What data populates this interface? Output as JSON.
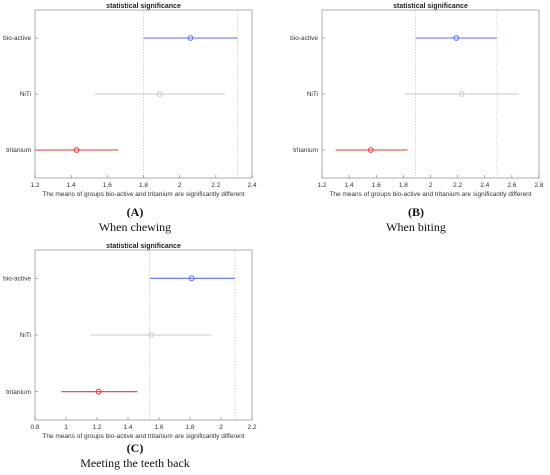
{
  "chart_data": [
    {
      "id": "A",
      "type": "scatter",
      "title": "statistical significance",
      "xlabel": "The means of groups bio-active and tritanium are significantly different",
      "categories": [
        "bio-active",
        "NiTi",
        "tritanium"
      ],
      "xlim": [
        1.2,
        2.4
      ],
      "xticks": [
        "1.2",
        "1.4",
        "1.6",
        "1.8",
        "2",
        "2.2",
        "2.4"
      ],
      "series": [
        {
          "category": "bio-active",
          "mean": 2.06,
          "low": 1.8,
          "high": 2.32,
          "color": "#5b6ff0"
        },
        {
          "category": "NiTi",
          "mean": 1.89,
          "low": 1.53,
          "high": 2.25,
          "color": "#c8c8c8"
        },
        {
          "category": "tritanium",
          "mean": 1.43,
          "low": 1.2,
          "high": 1.66,
          "color": "#e03a3a"
        }
      ],
      "ref_lines": [
        1.8,
        2.32
      ],
      "label": "(A)",
      "caption": "When chewing"
    },
    {
      "id": "B",
      "type": "scatter",
      "title": "statistical significance",
      "xlabel": "The means of groups bio-active and tritanium are significantly different",
      "categories": [
        "bio-active",
        "NiTi",
        "tritanium"
      ],
      "xlim": [
        1.2,
        2.8
      ],
      "xticks": [
        "1.2",
        "1.4",
        "1.6",
        "1.8",
        "2",
        "2.2",
        "2.4",
        "2.6",
        "2.8"
      ],
      "series": [
        {
          "category": "bio-active",
          "mean": 2.19,
          "low": 1.89,
          "high": 2.49,
          "color": "#5b6ff0"
        },
        {
          "category": "NiTi",
          "mean": 2.23,
          "low": 1.81,
          "high": 2.65,
          "color": "#c8c8c8"
        },
        {
          "category": "tritanium",
          "mean": 1.56,
          "low": 1.3,
          "high": 1.83,
          "color": "#e03a3a"
        }
      ],
      "ref_lines": [
        1.89,
        2.49
      ],
      "label": "(B)",
      "caption": "When biting"
    },
    {
      "id": "C",
      "type": "scatter",
      "title": "statistical significance",
      "xlabel": "The means of groups bio-active and tritanium are significantly different",
      "categories": [
        "bio-active",
        "NiTi",
        "tritanium"
      ],
      "xlim": [
        0.8,
        2.2
      ],
      "xticks": [
        "0.8",
        "1",
        "1.2",
        "1.4",
        "1.6",
        "1.8",
        "2",
        "2.2"
      ],
      "series": [
        {
          "category": "bio-active",
          "mean": 1.81,
          "low": 1.54,
          "high": 2.09,
          "color": "#5b6ff0"
        },
        {
          "category": "NiTi",
          "mean": 1.55,
          "low": 1.16,
          "high": 1.94,
          "color": "#c8c8c8"
        },
        {
          "category": "tritanium",
          "mean": 1.21,
          "low": 0.97,
          "high": 1.46,
          "color": "#e03a3a"
        }
      ],
      "ref_lines": [
        1.54,
        2.09
      ],
      "label": "(C)",
      "caption": "Meeting the teeth back"
    }
  ]
}
